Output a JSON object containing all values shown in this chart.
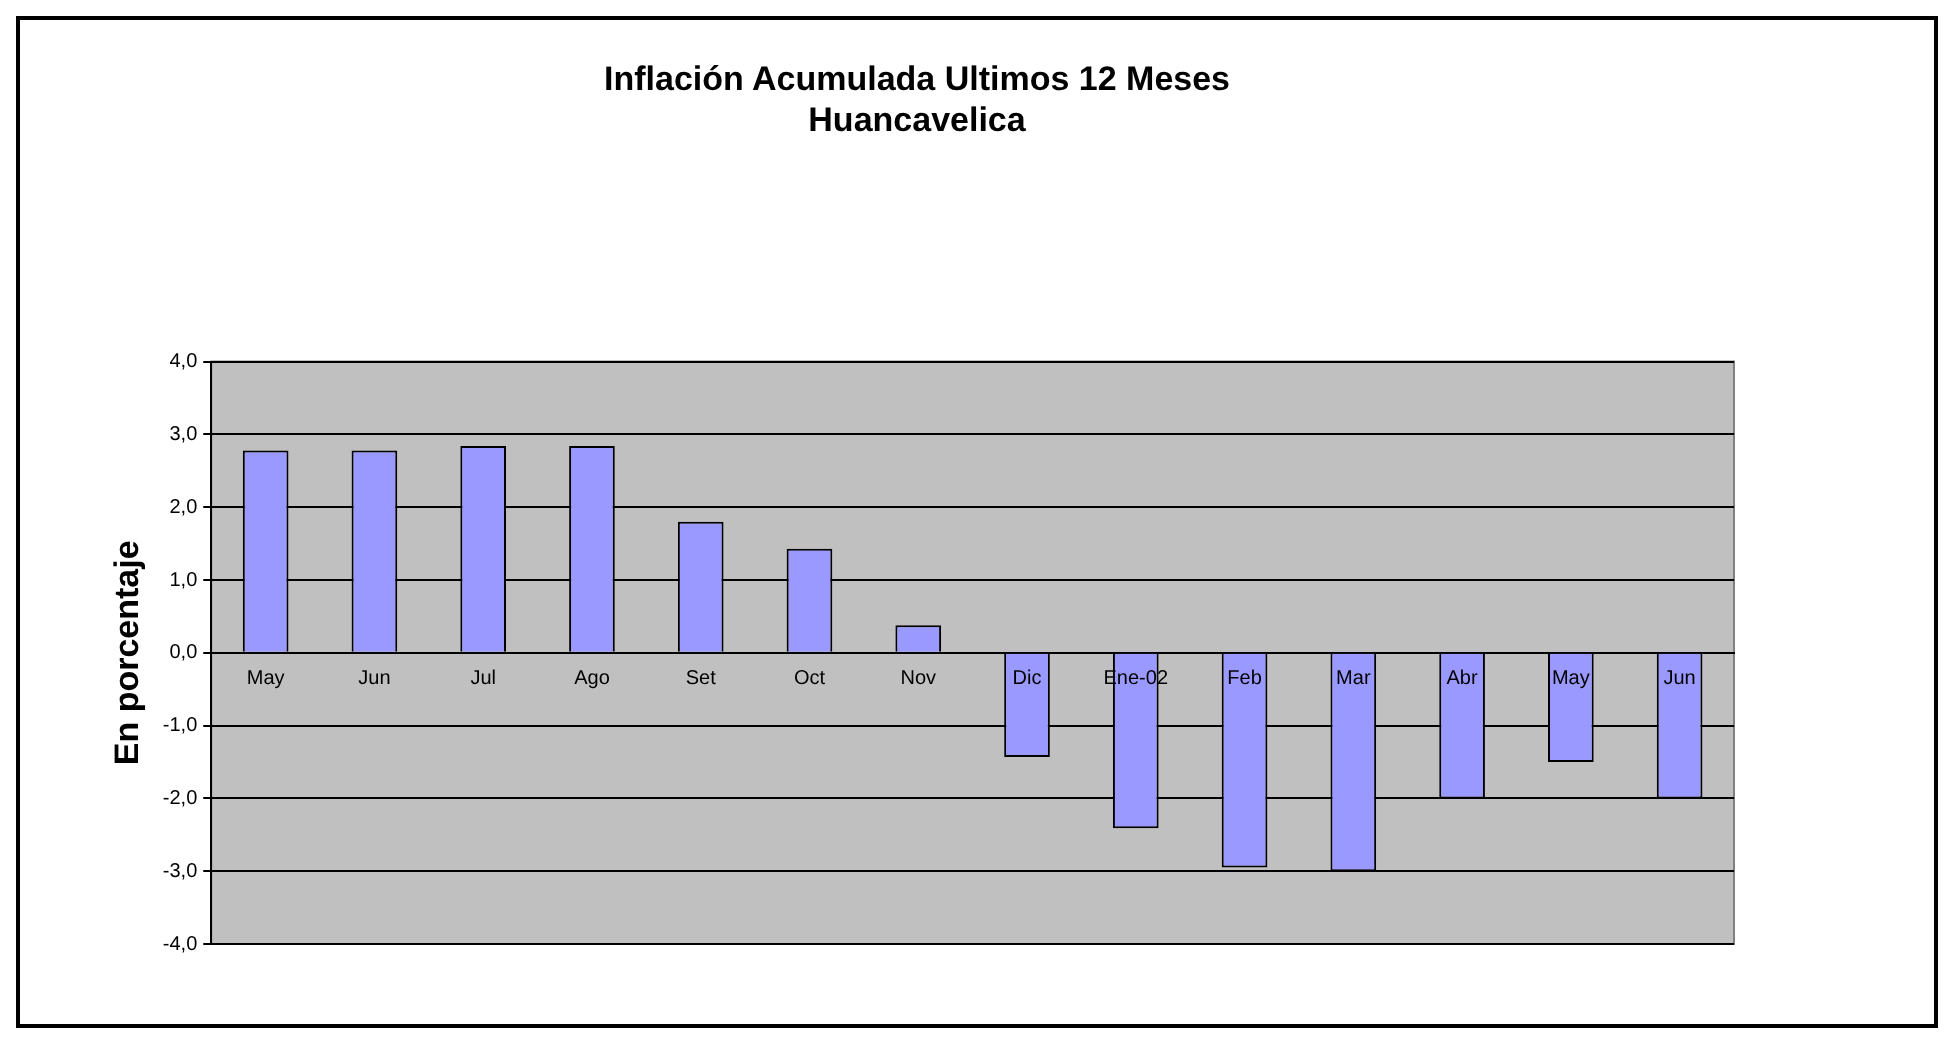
{
  "chart_data": {
    "type": "bar",
    "title": "Inflación Acumulada Ultimos 12 Meses\nHuancavelica",
    "ylabel": "En porcentaje",
    "categories": [
      "May",
      "Jun",
      "Jul",
      "Ago",
      "Set",
      "Oct",
      "Nov",
      "Dic",
      "Ene-02",
      "Feb",
      "Mar",
      "Abr",
      "May",
      "Jun"
    ],
    "values": [
      2.78,
      2.78,
      2.84,
      2.84,
      1.8,
      1.43,
      0.38,
      -1.43,
      -2.41,
      -2.95,
      -3.0,
      -2.0,
      -1.5,
      -2.0
    ],
    "color": "#9999ff",
    "ylim": [
      -4,
      4
    ],
    "yticks": [
      {
        "value": -4,
        "label": "-4,0"
      },
      {
        "value": -3,
        "label": "-3,0"
      },
      {
        "value": -2,
        "label": "-2,0"
      },
      {
        "value": -1,
        "label": "-1,0"
      },
      {
        "value": 0,
        "label": "0,0"
      },
      {
        "value": 1,
        "label": "1,0"
      },
      {
        "value": 2,
        "label": "2,0"
      },
      {
        "value": 3,
        "label": "3,0"
      },
      {
        "value": 4,
        "label": "4,0"
      }
    ],
    "grid": "y",
    "legend": false
  }
}
